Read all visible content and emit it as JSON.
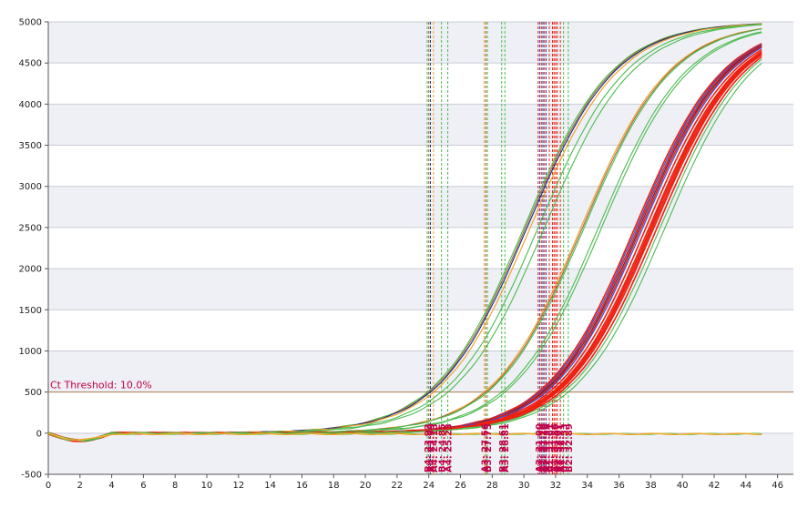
{
  "chart_data": {
    "type": "line",
    "x_ticks": [
      0,
      2,
      4,
      6,
      8,
      10,
      12,
      14,
      16,
      18,
      20,
      22,
      24,
      26,
      28,
      30,
      32,
      34,
      36,
      38,
      40,
      42,
      44,
      46
    ],
    "y_ticks": [
      -500,
      0,
      500,
      1000,
      1500,
      2000,
      2500,
      3000,
      3500,
      4000,
      4500,
      5000
    ],
    "xlim": [
      0,
      47
    ],
    "ylim": [
      -500,
      5000
    ],
    "threshold": {
      "label": "Ct Threshold: 10.0%",
      "value": 500,
      "color": "#b0805a"
    },
    "grid": "horizontal bands",
    "colors": {
      "green": "#4cbb50",
      "orange": "#f0a020",
      "blue": "#2a4cd8",
      "red": "#ee2010",
      "brown": "#a06a3c",
      "navy": "#1a2a7a",
      "yellow": "#e8d860",
      "label": "#c0004a"
    },
    "series": [
      {
        "ct": 23.9,
        "color": "green"
      },
      {
        "ct": 24.0,
        "color": "brown"
      },
      {
        "ct": 24.1,
        "color": "navy"
      },
      {
        "ct": 24.3,
        "color": "orange"
      },
      {
        "ct": 24.8,
        "color": "green"
      },
      {
        "ct": 25.2,
        "color": "green"
      },
      {
        "ct": 27.5,
        "color": "orange"
      },
      {
        "ct": 27.6,
        "color": "brown"
      },
      {
        "ct": 27.7,
        "color": "green"
      },
      {
        "ct": 28.6,
        "color": "green"
      },
      {
        "ct": 28.8,
        "color": "green"
      },
      {
        "ct": 30.9,
        "color": "red"
      },
      {
        "ct": 31.0,
        "color": "blue"
      },
      {
        "ct": 31.1,
        "color": "red"
      },
      {
        "ct": 31.2,
        "color": "navy"
      },
      {
        "ct": 31.3,
        "color": "red"
      },
      {
        "ct": 31.4,
        "color": "blue"
      },
      {
        "ct": 31.6,
        "color": "red"
      },
      {
        "ct": 31.8,
        "color": "red"
      },
      {
        "ct": 31.9,
        "color": "red"
      },
      {
        "ct": 32.0,
        "color": "red"
      },
      {
        "ct": 32.1,
        "color": "red"
      },
      {
        "ct": 32.3,
        "color": "red"
      },
      {
        "ct": 32.5,
        "color": "green"
      },
      {
        "ct": 32.8,
        "color": "green"
      }
    ],
    "flat_series": [
      {
        "color": "green"
      },
      {
        "color": "yellow"
      },
      {
        "color": "orange"
      }
    ],
    "ct_labels": [
      {
        "text": "B4: 23.93",
        "x": 23.9
      },
      {
        "text": "A4: 23.99",
        "x": 24.1
      },
      {
        "text": "A4: 24.13",
        "x": 24.3
      },
      {
        "text": "B4: 24.85",
        "x": 24.8
      },
      {
        "text": "A4: 25.23",
        "x": 25.2
      },
      {
        "text": "A3: 27.56",
        "x": 27.5
      },
      {
        "text": "B3: 27.73",
        "x": 27.7
      },
      {
        "text": "B3: 28.61",
        "x": 28.6
      },
      {
        "text": "A3: 28.81",
        "x": 28.8
      },
      {
        "text": "A3: 31.00",
        "x": 30.9
      },
      {
        "text": "A2: 31.16",
        "x": 31.1
      },
      {
        "text": "A1: 31.26",
        "x": 31.2
      },
      {
        "text": "A2: 31.38",
        "x": 31.4
      },
      {
        "text": "A1: 31.61",
        "x": 31.6
      },
      {
        "text": "A1: 31.86",
        "x": 31.9
      },
      {
        "text": "B2: 32.07",
        "x": 32.1
      },
      {
        "text": "A2: 32.31",
        "x": 32.3
      },
      {
        "text": "B2: 32.53",
        "x": 32.5
      },
      {
        "text": "B2: 32.89",
        "x": 32.8
      }
    ]
  }
}
